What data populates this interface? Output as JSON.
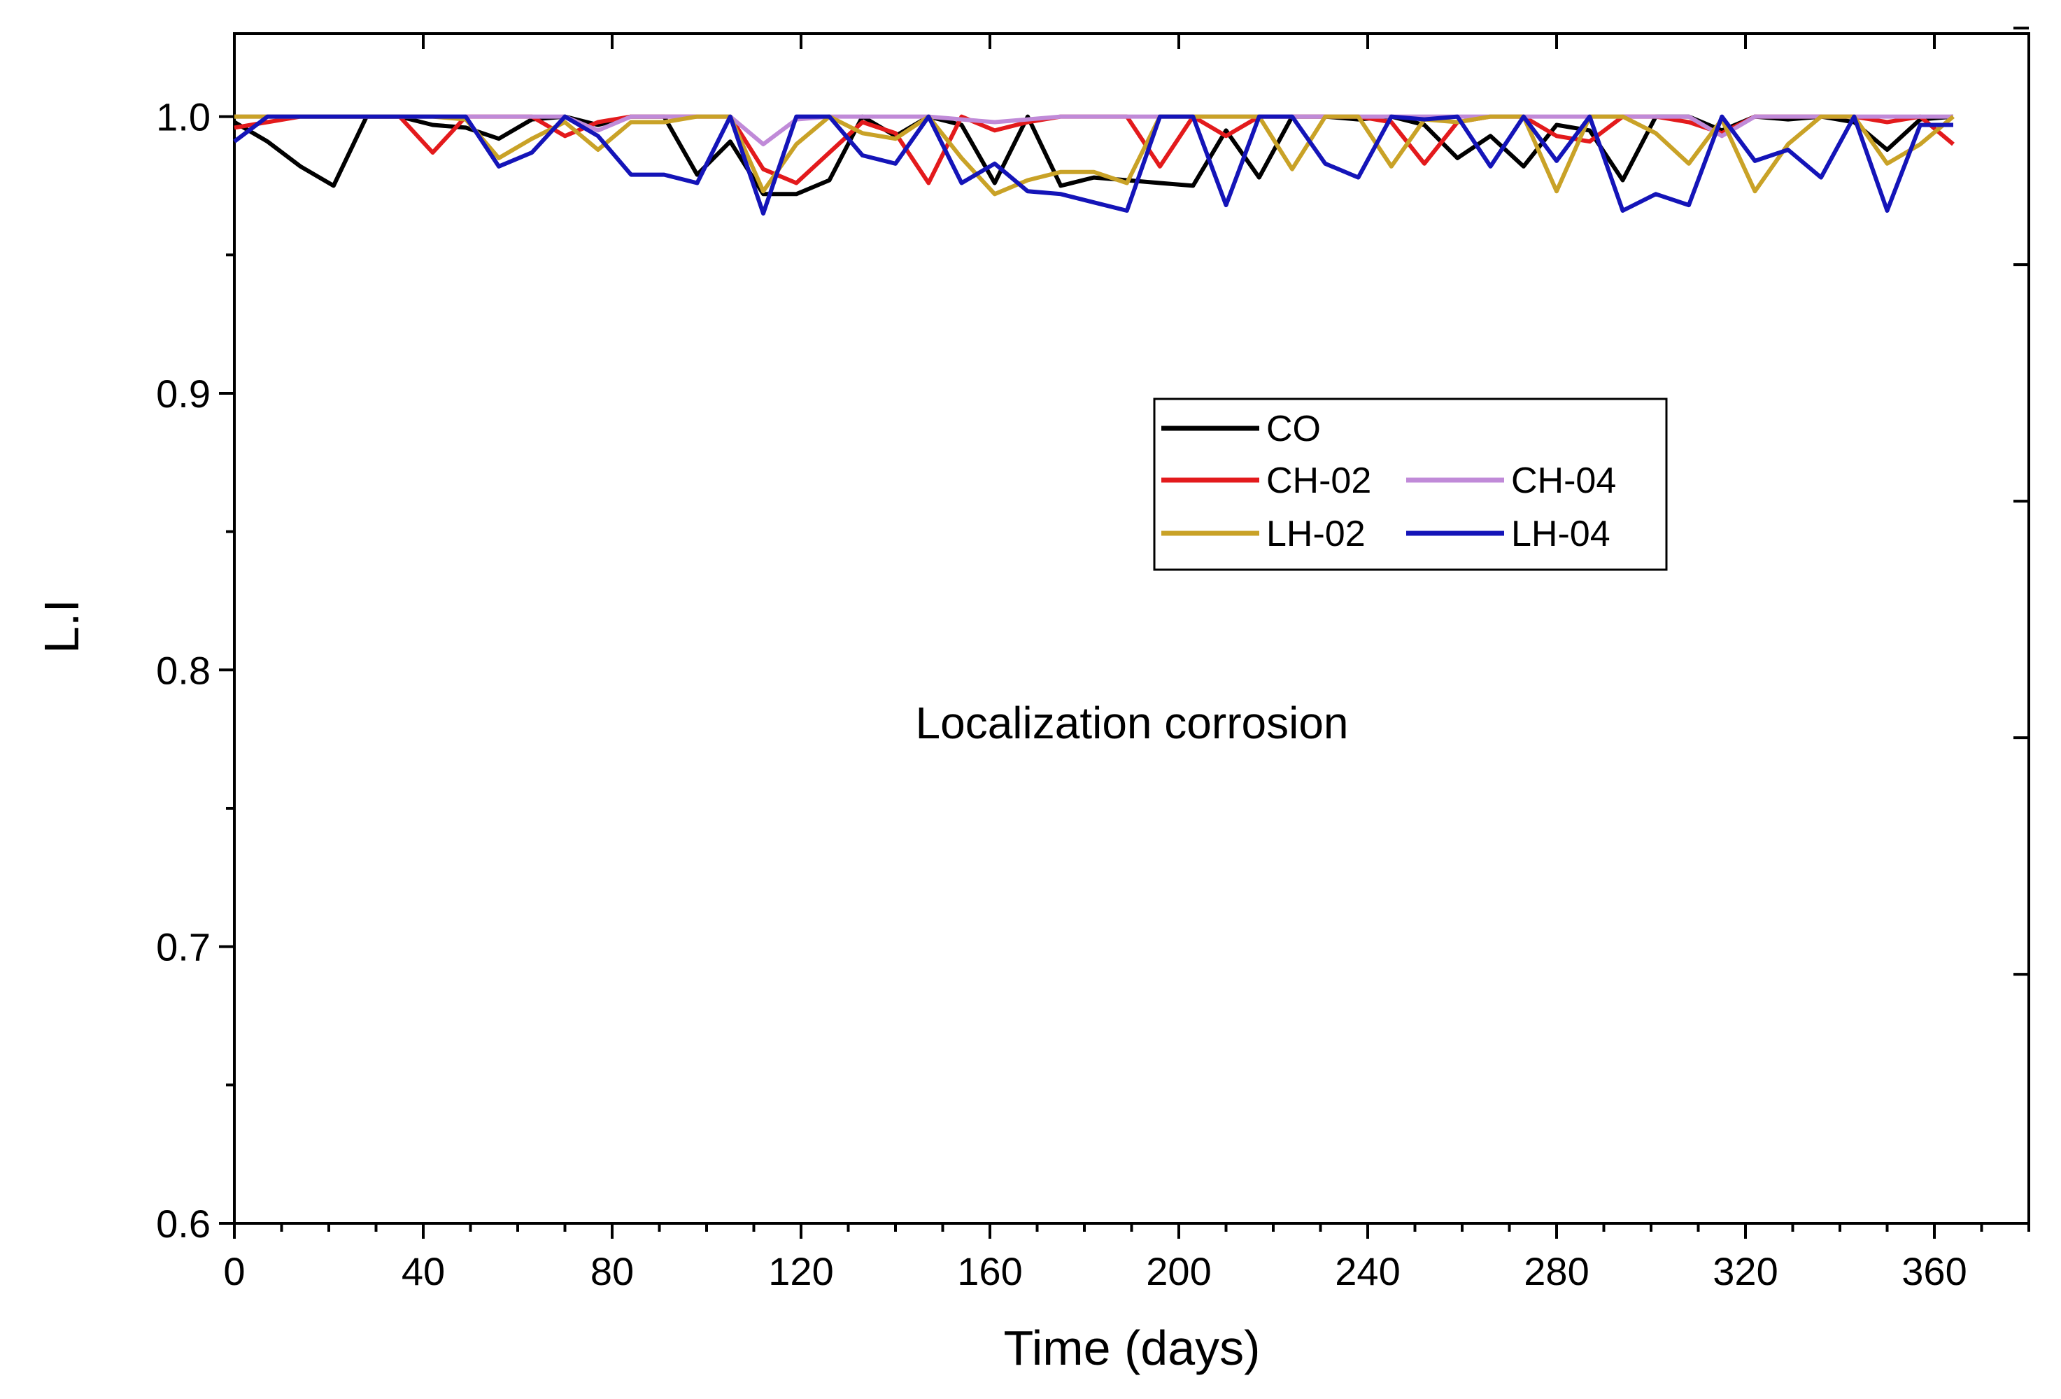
{
  "chart_data": {
    "type": "line",
    "title": "",
    "xlabel": "Time (days)",
    "ylabel": "L.I",
    "xlim": [
      0,
      380
    ],
    "ylim": [
      0.6,
      1.03
    ],
    "xticks": [
      0,
      40,
      80,
      120,
      160,
      200,
      240,
      280,
      320,
      360
    ],
    "xtick_labels": [
      "0",
      "40",
      "80",
      "120",
      "160",
      "200",
      "240",
      "280",
      "320",
      "360"
    ],
    "yticks": [
      0.6,
      0.7,
      0.8,
      0.9,
      1.0
    ],
    "ytick_labels": [
      "0.6",
      "0.7",
      "0.8",
      "0.9",
      "1.0"
    ],
    "annotation": "Localization corrosion",
    "legend_position": "center-right",
    "series": [
      {
        "name": "CO",
        "color": "#000000",
        "x": [
          0,
          7,
          14,
          21,
          28,
          35,
          42,
          49,
          56,
          63,
          70,
          77,
          84,
          91,
          98,
          105,
          112,
          119,
          126,
          133,
          140,
          147,
          154,
          161,
          168,
          175,
          182,
          189,
          196,
          203,
          210,
          217,
          224,
          231,
          238,
          245,
          252,
          259,
          266,
          273,
          280,
          287,
          294,
          301,
          308,
          315,
          322,
          329,
          336,
          343,
          350,
          357,
          364
        ],
        "values": [
          0.998,
          0.991,
          0.982,
          0.975,
          1.0,
          1.0,
          0.997,
          0.996,
          0.992,
          0.999,
          1.0,
          0.997,
          1.0,
          1.0,
          0.979,
          0.991,
          0.972,
          0.972,
          0.977,
          1.0,
          0.993,
          1.0,
          0.997,
          0.976,
          1.0,
          0.975,
          0.978,
          0.977,
          0.976,
          0.975,
          0.995,
          0.978,
          1.0,
          1.0,
          0.999,
          1.0,
          0.997,
          0.985,
          0.993,
          0.982,
          0.997,
          0.995,
          0.977,
          1.0,
          1.0,
          0.995,
          1.0,
          0.999,
          1.0,
          0.998,
          0.988,
          0.999,
          1.0
        ]
      },
      {
        "name": "CH-02",
        "color": "#e31a1c",
        "x": [
          0,
          7,
          14,
          21,
          28,
          35,
          42,
          49,
          56,
          63,
          70,
          77,
          84,
          91,
          98,
          105,
          112,
          119,
          126,
          133,
          140,
          147,
          154,
          161,
          168,
          175,
          182,
          189,
          196,
          203,
          210,
          217,
          224,
          231,
          238,
          245,
          252,
          259,
          266,
          273,
          280,
          287,
          294,
          301,
          308,
          315,
          322,
          329,
          336,
          343,
          350,
          357,
          364
        ],
        "values": [
          0.996,
          0.998,
          1.0,
          1.0,
          1.0,
          1.0,
          0.987,
          1.0,
          1.0,
          1.0,
          0.993,
          0.998,
          1.0,
          1.0,
          1.0,
          1.0,
          0.981,
          0.976,
          0.987,
          0.998,
          0.994,
          0.976,
          1.0,
          0.995,
          0.998,
          1.0,
          1.0,
          1.0,
          0.982,
          1.0,
          0.993,
          1.0,
          1.0,
          1.0,
          1.0,
          0.998,
          0.983,
          0.998,
          1.0,
          1.0,
          0.993,
          0.991,
          1.0,
          1.0,
          0.998,
          0.994,
          1.0,
          1.0,
          1.0,
          1.0,
          0.998,
          1.0,
          0.99
        ]
      },
      {
        "name": "CH-04",
        "color": "#c08ad8",
        "x": [
          0,
          7,
          14,
          21,
          28,
          35,
          42,
          49,
          56,
          63,
          70,
          77,
          84,
          91,
          98,
          105,
          112,
          119,
          126,
          133,
          140,
          147,
          154,
          161,
          168,
          175,
          182,
          189,
          196,
          203,
          210,
          217,
          224,
          231,
          238,
          245,
          252,
          259,
          266,
          273,
          280,
          287,
          294,
          301,
          308,
          315,
          322,
          329,
          336,
          343,
          350,
          357,
          364
        ],
        "values": [
          1.0,
          1.0,
          1.0,
          1.0,
          1.0,
          1.0,
          1.0,
          1.0,
          1.0,
          1.0,
          1.0,
          0.995,
          1.0,
          1.0,
          1.0,
          1.0,
          0.99,
          0.999,
          1.0,
          1.0,
          1.0,
          1.0,
          0.999,
          0.998,
          0.999,
          1.0,
          1.0,
          1.0,
          1.0,
          1.0,
          1.0,
          1.0,
          1.0,
          1.0,
          1.0,
          1.0,
          1.0,
          1.0,
          1.0,
          1.0,
          1.0,
          1.0,
          1.0,
          1.0,
          1.0,
          0.993,
          1.0,
          1.0,
          1.0,
          1.0,
          1.0,
          1.0,
          1.0
        ]
      },
      {
        "name": "LH-02",
        "color": "#c9a227",
        "x": [
          0,
          7,
          14,
          21,
          28,
          35,
          42,
          49,
          56,
          63,
          70,
          77,
          84,
          91,
          98,
          105,
          112,
          119,
          126,
          133,
          140,
          147,
          154,
          161,
          168,
          175,
          182,
          189,
          196,
          203,
          210,
          217,
          224,
          231,
          238,
          245,
          252,
          259,
          266,
          273,
          280,
          287,
          294,
          301,
          308,
          315,
          322,
          329,
          336,
          343,
          350,
          357,
          364
        ],
        "values": [
          1.0,
          1.0,
          1.0,
          1.0,
          1.0,
          1.0,
          1.0,
          0.999,
          0.985,
          0.992,
          0.998,
          0.988,
          0.998,
          0.998,
          1.0,
          1.0,
          0.973,
          0.99,
          1.0,
          0.994,
          0.992,
          1.0,
          0.985,
          0.972,
          0.977,
          0.98,
          0.98,
          0.976,
          1.0,
          1.0,
          1.0,
          1.0,
          0.981,
          1.0,
          1.0,
          0.982,
          0.999,
          0.998,
          1.0,
          1.0,
          0.973,
          1.0,
          1.0,
          0.994,
          0.983,
          0.999,
          0.973,
          0.99,
          1.0,
          1.0,
          0.983,
          0.99,
          1.0
        ]
      },
      {
        "name": "LH-04",
        "color": "#1414b8",
        "x": [
          0,
          7,
          14,
          21,
          28,
          35,
          42,
          49,
          56,
          63,
          70,
          77,
          84,
          91,
          98,
          105,
          112,
          119,
          126,
          133,
          140,
          147,
          154,
          161,
          168,
          175,
          182,
          189,
          196,
          203,
          210,
          217,
          224,
          231,
          238,
          245,
          252,
          259,
          266,
          273,
          280,
          287,
          294,
          301,
          308,
          315,
          322,
          329,
          336,
          343,
          350,
          357,
          364
        ],
        "values": [
          0.991,
          1.0,
          1.0,
          1.0,
          1.0,
          1.0,
          1.0,
          1.0,
          0.982,
          0.987,
          1.0,
          0.993,
          0.979,
          0.979,
          0.976,
          1.0,
          0.965,
          1.0,
          1.0,
          0.986,
          0.983,
          1.0,
          0.976,
          0.983,
          0.973,
          0.972,
          0.969,
          0.966,
          1.0,
          1.0,
          0.968,
          1.0,
          1.0,
          0.983,
          0.978,
          1.0,
          0.999,
          1.0,
          0.982,
          1.0,
          0.984,
          1.0,
          0.966,
          0.972,
          0.968,
          1.0,
          0.984,
          0.988,
          0.978,
          1.0,
          0.966,
          0.997,
          0.997
        ]
      }
    ]
  }
}
